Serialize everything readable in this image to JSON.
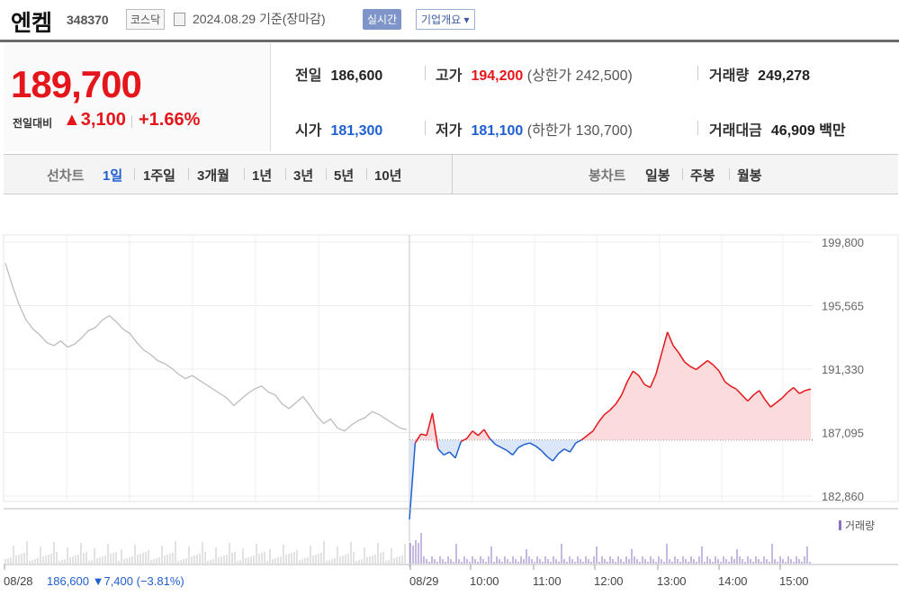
{
  "header": {
    "name": "엔켐",
    "code": "348370",
    "market": "코스닥",
    "date": "2024.08.29 기준(장마감)",
    "realtime_label": "실시간",
    "company_label": "기업개요 ▾"
  },
  "price": {
    "current": "189,700",
    "change_label": "전일대비",
    "change": "▲3,100",
    "change_pct": "+1.66%"
  },
  "stats": {
    "prev_label": "전일",
    "prev": "186,600",
    "high_label": "고가",
    "high": "194,200",
    "upper": "(상한가 242,500)",
    "volume_label": "거래량",
    "volume": "249,278",
    "open_label": "시가",
    "open": "181,300",
    "low_label": "저가",
    "low": "181,100",
    "lower": "(하한가 130,700)",
    "amount_label": "거래대금",
    "amount": "46,909 백만"
  },
  "tabs": {
    "line_label": "선차트",
    "line": [
      "1일",
      "1주일",
      "3개월",
      "1년",
      "3년",
      "5년",
      "10년"
    ],
    "candle_label": "봉차트",
    "candle": [
      "일봉",
      "주봉",
      "월봉"
    ]
  },
  "colors": {
    "up": "#e5161b",
    "down": "#1f5fcf",
    "prev_day": "#bdbdbd",
    "volume": "#8b73c4"
  },
  "chart_data": {
    "type": "line",
    "y_ticks": [
      "199,800",
      "195,565",
      "191,330",
      "187,095",
      "182,860"
    ],
    "ylim": [
      182860,
      199800
    ],
    "x_ticks": [
      "08/28",
      "08/29",
      "10:00",
      "11:00",
      "12:00",
      "13:00",
      "14:00",
      "15:00"
    ],
    "prev_close": 186600,
    "prev_day_note": "08/28  186,600 ▼7,400 (−3.81%)",
    "volume_legend": "거래량",
    "series": [
      {
        "values_prev_day": [
          198400,
          196900,
          195600,
          194600,
          194000,
          193600,
          193100,
          192900,
          193200,
          192800,
          193000,
          193400,
          193900,
          194100,
          194600,
          194900,
          194500,
          194000,
          193700,
          193100,
          192600,
          192300,
          191900,
          191700,
          191400,
          191000,
          190700,
          190900,
          190600,
          190300,
          190000,
          189700,
          189400,
          188900,
          189300,
          189700,
          190000,
          190200,
          189800,
          189600,
          189000,
          188700,
          189100,
          189500,
          188900,
          188200,
          187700,
          188000,
          187400,
          187200,
          187600,
          187900,
          188100,
          188500,
          188300,
          188000,
          187700,
          187400,
          187300
        ]
      },
      {
        "values_today": [
          181300,
          186400,
          187000,
          186900,
          188400,
          186000,
          185600,
          185800,
          185400,
          186500,
          186700,
          187200,
          186900,
          187300,
          186700,
          186300,
          186100,
          185900,
          185600,
          186100,
          186300,
          186400,
          186200,
          185900,
          185500,
          185200,
          185700,
          186000,
          185800,
          186400,
          186600,
          186900,
          187200,
          187800,
          188300,
          188600,
          189000,
          189600,
          190500,
          191200,
          190900,
          190300,
          190100,
          191000,
          192400,
          193800,
          192900,
          192400,
          191800,
          191500,
          191300,
          191600,
          191900,
          191600,
          191200,
          190500,
          190200,
          190000,
          189600,
          189200,
          189600,
          189900,
          189300,
          188800,
          189100,
          189400,
          189800,
          190100,
          189700,
          189900,
          190000
        ]
      }
    ]
  }
}
